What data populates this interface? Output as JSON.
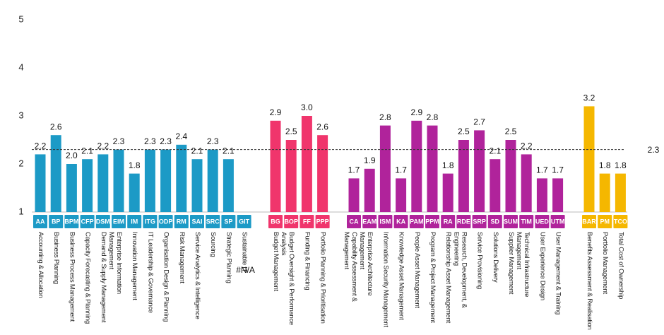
{
  "chart_data": {
    "type": "bar",
    "ylim": [
      1,
      5
    ],
    "yticks": [
      1,
      2,
      3,
      4,
      5
    ],
    "reference_line": 2.3,
    "groups": [
      {
        "color": "#1c9ac6",
        "codes": [
          "AA",
          "BP",
          "BPM",
          "CFP",
          "DSM",
          "EIM",
          "IM",
          "ITG",
          "ODP",
          "RM",
          "SAI",
          "SRC",
          "SP",
          "GIT"
        ],
        "categories": [
          "Accounting & Allocation",
          "Business Planning",
          "Business Process Management",
          "Capacity Forecasting & Planning",
          "Demand & Supply Management",
          "Enterprise Information Management",
          "Innovation Management",
          "IT Leadership & Governance",
          "Organisation Design & Planning",
          "Risk Management",
          "Service Analytics & Intelligence",
          "Sourcing",
          "Strategic Planning",
          "Sustainable IT"
        ],
        "values": [
          2.2,
          2.6,
          2.0,
          2.1,
          2.2,
          2.3,
          1.8,
          2.3,
          2.3,
          2.4,
          2.1,
          2.3,
          2.1,
          null
        ],
        "value_labels": [
          "2.2",
          "2.6",
          "2.0",
          "2.1",
          "2.2",
          "2.3",
          "1.8",
          "2.3",
          "2.3",
          "2.4",
          "2.1",
          "2.3",
          "2.1",
          "#N/A"
        ]
      },
      {
        "color": "#f0356c",
        "codes": [
          "BG",
          "BOP",
          "FF",
          "PPP"
        ],
        "categories": [
          "Budget Management",
          "Budget Oversight & Performance Analysis",
          "Funding & Financing",
          "Portfolio Planning & Prioritisation"
        ],
        "values": [
          2.9,
          2.5,
          3.0,
          2.6
        ],
        "value_labels": [
          "2.9",
          "2.5",
          "3.0",
          "2.6"
        ]
      },
      {
        "color": "#b0239b",
        "codes": [
          "CA",
          "EAM",
          "ISM",
          "KA",
          "PAM",
          "PPM",
          "RA",
          "RDE",
          "SRP",
          "SD",
          "SUM",
          "TIM",
          "UED",
          "UTM"
        ],
        "categories": [
          "Capability Assessment & Management",
          "Enterprise Architecture Management",
          "Information Security Management",
          "Knowledge Asset Management",
          "People Asset Management",
          "Program & Project Management",
          "Relationship Asset Management",
          "Research, Development, & Engineering",
          "Service Provisioning",
          "Solutions Delivery",
          "Supplier Management",
          "Technical Infrastructure Management",
          "User Experience Design",
          "User Management & Training"
        ],
        "values": [
          1.7,
          1.9,
          2.8,
          1.7,
          2.9,
          2.8,
          1.8,
          2.5,
          2.7,
          2.1,
          2.5,
          2.2,
          1.7,
          1.7
        ],
        "value_labels": [
          "1.7",
          "1.9",
          "2.8",
          "1.7",
          "2.9",
          "2.8",
          "1.8",
          "2.5",
          "2.7",
          "2.1",
          "2.5",
          "2.2",
          "1.7",
          "1.7"
        ]
      },
      {
        "color": "#f5b700",
        "codes": [
          "BAR",
          "PM",
          "TCO"
        ],
        "categories": [
          "Benefits Assessment & Realisation",
          "Portfolio Management",
          "Total Cost of Ownership"
        ],
        "values": [
          3.2,
          1.8,
          1.8
        ],
        "value_labels": [
          "3.2",
          "1.8",
          "1.8"
        ]
      }
    ]
  }
}
